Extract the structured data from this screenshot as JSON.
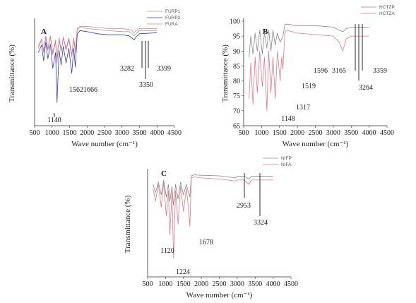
{
  "chart_data": [
    {
      "type": "line",
      "panel": "A",
      "xlabel": "Wave number (cm⁻¹)",
      "ylabel": "Transmittance (%)",
      "xlim": [
        500,
        4500
      ],
      "xticks": [
        500,
        1000,
        1500,
        2000,
        2500,
        3000,
        3500,
        4000,
        4500
      ],
      "yticks": [],
      "ylim": [
        0,
        100
      ],
      "grid": false,
      "legend": "top-right",
      "series": [
        {
          "name": "FURP1",
          "color": "#a0a0a0",
          "x": [
            600,
            700,
            760,
            820,
            880,
            950,
            1020,
            1100,
            1140,
            1200,
            1260,
            1320,
            1400,
            1480,
            1562,
            1620,
            1666,
            1720,
            1800,
            2000,
            2300,
            2600,
            3000,
            3200,
            3282,
            3350,
            3399,
            3500,
            4000
          ],
          "y": [
            74,
            82,
            70,
            84,
            72,
            85,
            68,
            80,
            60,
            83,
            70,
            84,
            72,
            82,
            66,
            82,
            70,
            92,
            94,
            93,
            92,
            91,
            90,
            90,
            88,
            86,
            88,
            91,
            91
          ]
        },
        {
          "name": "FURP2",
          "color": "#3b3fa8",
          "x": [
            600,
            700,
            760,
            820,
            880,
            950,
            1020,
            1100,
            1140,
            1200,
            1260,
            1320,
            1400,
            1480,
            1562,
            1620,
            1666,
            1720,
            1800,
            2000,
            2300,
            2600,
            3000,
            3200,
            3282,
            3350,
            3399,
            3500,
            4000
          ],
          "y": [
            70,
            77,
            62,
            80,
            64,
            78,
            55,
            70,
            22,
            72,
            58,
            76,
            60,
            74,
            50,
            74,
            56,
            88,
            91,
            90,
            88,
            87,
            87,
            86,
            84,
            82,
            85,
            88,
            89
          ]
        },
        {
          "name": "FURA",
          "color": "#e27a8e",
          "x": [
            600,
            700,
            760,
            820,
            880,
            950,
            1020,
            1100,
            1140,
            1200,
            1260,
            1320,
            1400,
            1480,
            1562,
            1620,
            1666,
            1720,
            1800,
            2000,
            2300,
            2600,
            3000,
            3200,
            3282,
            3350,
            3399,
            3500,
            4000
          ],
          "y": [
            76,
            83,
            72,
            86,
            74,
            86,
            70,
            82,
            64,
            84,
            72,
            85,
            74,
            84,
            68,
            84,
            72,
            93,
            95,
            95,
            94,
            93,
            93,
            92,
            91,
            89,
            91,
            93,
            93
          ]
        }
      ],
      "annotations": [
        {
          "label": "1140",
          "x": 1140
        },
        {
          "label": "1562",
          "x": 1562
        },
        {
          "label": "1666",
          "x": 1666
        },
        {
          "label": "3282",
          "x": 3282
        },
        {
          "label": "3350",
          "x": 3350
        },
        {
          "label": "3399",
          "x": 3399
        }
      ]
    },
    {
      "type": "line",
      "panel": "B",
      "xlabel": "Wave number (cm⁻¹)",
      "ylabel": "Transmittance (%)",
      "xlim": [
        500,
        4500
      ],
      "xticks": [
        500,
        1000,
        1500,
        2000,
        2500,
        3000,
        3500,
        4000,
        4500
      ],
      "ylim": [
        65,
        100
      ],
      "yticks": [
        65,
        70,
        75,
        80,
        85,
        90,
        95,
        100
      ],
      "grid": false,
      "legend": "top-right",
      "series": [
        {
          "name": "HCTZP",
          "color": "#8a8a8a",
          "x": [
            650,
            700,
            760,
            820,
            880,
            950,
            1020,
            1080,
            1148,
            1200,
            1260,
            1317,
            1380,
            1440,
            1519,
            1560,
            1596,
            1650,
            1700,
            2000,
            2500,
            3000,
            3165,
            3264,
            3359,
            3500,
            4000
          ],
          "y": [
            88,
            95,
            89,
            96,
            90,
            97,
            89,
            96,
            91,
            97,
            90,
            97,
            92,
            96,
            93,
            94,
            95,
            99,
            99,
            98.5,
            98.5,
            98,
            97,
            96.5,
            97.5,
            98,
            98
          ]
        },
        {
          "name": "HCTZA",
          "color": "#e27a8e",
          "x": [
            650,
            700,
            760,
            820,
            880,
            950,
            1020,
            1080,
            1148,
            1200,
            1260,
            1317,
            1380,
            1440,
            1519,
            1560,
            1596,
            1650,
            1700,
            2000,
            2500,
            3000,
            3165,
            3264,
            3359,
            3500,
            4000
          ],
          "y": [
            74,
            86,
            72,
            88,
            76,
            90,
            78,
            88,
            70,
            90,
            76,
            88,
            74,
            90,
            80,
            88,
            84,
            96,
            97,
            96,
            95.5,
            95,
            93,
            90,
            94,
            95,
            95
          ]
        }
      ],
      "annotations": [
        {
          "label": "1148",
          "x": 1148
        },
        {
          "label": "1317",
          "x": 1317
        },
        {
          "label": "1519",
          "x": 1519
        },
        {
          "label": "1596",
          "x": 1596
        },
        {
          "label": "3165",
          "x": 3165
        },
        {
          "label": "3264",
          "x": 3264
        },
        {
          "label": "3359",
          "x": 3359
        }
      ]
    },
    {
      "type": "line",
      "panel": "C",
      "xlabel": "Wave number (cm⁻¹)",
      "ylabel": "Transmittance (%)",
      "xlim": [
        500,
        4500
      ],
      "xticks": [
        500,
        1000,
        1500,
        2000,
        2500,
        3000,
        3500,
        4000,
        4500
      ],
      "yticks": [],
      "ylim": [
        0,
        100
      ],
      "grid": false,
      "legend": "top-right",
      "series": [
        {
          "name": "NIFP",
          "color": "#8a8a8a",
          "x": [
            650,
            720,
            800,
            880,
            950,
            1020,
            1080,
            1120,
            1180,
            1224,
            1280,
            1350,
            1420,
            1500,
            1580,
            1640,
            1678,
            1720,
            1800,
            2000,
            2500,
            2953,
            3000,
            3200,
            3324,
            3400,
            4000
          ],
          "y": [
            88,
            80,
            90,
            78,
            92,
            76,
            88,
            72,
            86,
            68,
            88,
            74,
            90,
            78,
            88,
            80,
            76,
            96,
            97,
            96.5,
            96,
            94,
            95.5,
            95.5,
            93,
            95.5,
            95.5
          ]
        },
        {
          "name": "NIFA",
          "color": "#e27a8e",
          "x": [
            650,
            720,
            800,
            880,
            950,
            1020,
            1080,
            1120,
            1180,
            1224,
            1280,
            1350,
            1420,
            1500,
            1580,
            1640,
            1678,
            1720,
            1800,
            2000,
            2500,
            2953,
            3000,
            3200,
            3324,
            3400,
            4000
          ],
          "y": [
            84,
            72,
            88,
            66,
            90,
            58,
            82,
            40,
            80,
            18,
            82,
            50,
            86,
            62,
            84,
            66,
            48,
            94,
            95,
            94,
            93,
            91,
            92,
            92,
            88,
            92,
            92
          ]
        }
      ],
      "annotations": [
        {
          "label": "1120",
          "x": 1120
        },
        {
          "label": "1224",
          "x": 1224
        },
        {
          "label": "1678",
          "x": 1678
        },
        {
          "label": "2953",
          "x": 2953
        },
        {
          "label": "3324",
          "x": 3324
        }
      ]
    }
  ]
}
